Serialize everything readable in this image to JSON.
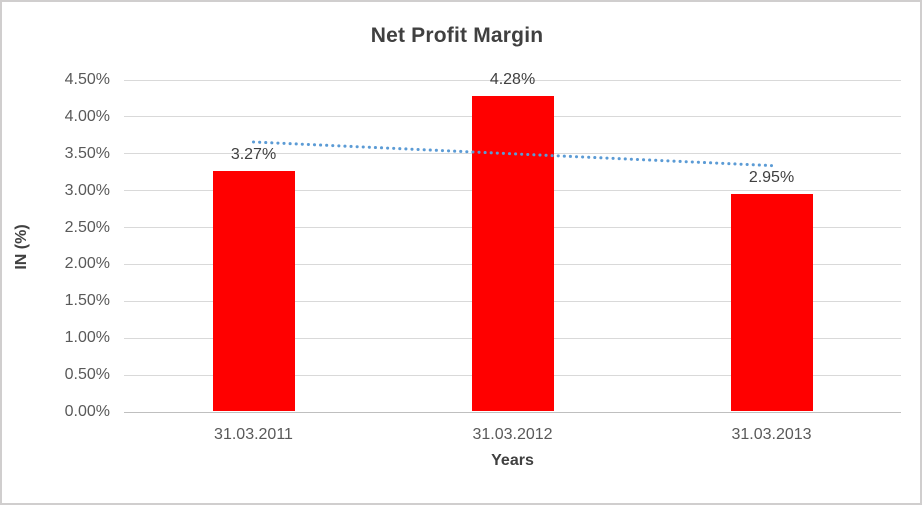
{
  "chart_data": {
    "type": "bar",
    "title": "Net Profit Margin",
    "xlabel": "Years",
    "ylabel": "IN (%)",
    "categories": [
      "31.03.2011",
      "31.03.2012",
      "31.03.2013"
    ],
    "values": [
      3.27,
      4.28,
      2.95
    ],
    "data_labels": [
      "3.27%",
      "4.28%",
      "2.95%"
    ],
    "y_ticks": [
      {
        "value": 0.0,
        "label": "0.00%"
      },
      {
        "value": 0.5,
        "label": "0.50%"
      },
      {
        "value": 1.0,
        "label": "1.00%"
      },
      {
        "value": 1.5,
        "label": "1.50%"
      },
      {
        "value": 2.0,
        "label": "2.00%"
      },
      {
        "value": 2.5,
        "label": "2.50%"
      },
      {
        "value": 3.0,
        "label": "3.00%"
      },
      {
        "value": 3.5,
        "label": "3.50%"
      },
      {
        "value": 4.0,
        "label": "4.00%"
      },
      {
        "value": 4.5,
        "label": "4.50%"
      }
    ],
    "ylim": [
      0,
      4.5
    ],
    "grid": true,
    "legend": "none",
    "trendline": {
      "type": "linear",
      "style": "dotted",
      "start_value": 3.66,
      "end_value": 3.34
    },
    "colors": {
      "bar": "#ff0000",
      "trendline": "#5b9bd5",
      "gridline": "#d9d9d9",
      "axis_line": "#bfbfbf",
      "title_text": "#404040",
      "tick_text": "#595959",
      "border": "#d0cece",
      "background": "#ffffff"
    }
  }
}
